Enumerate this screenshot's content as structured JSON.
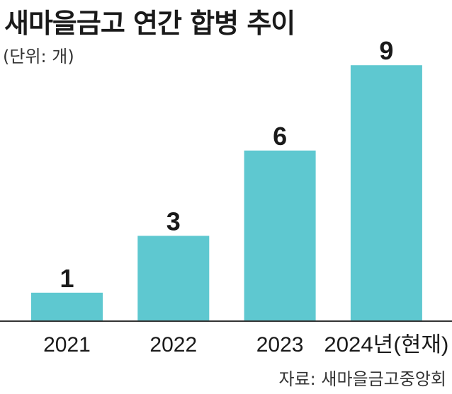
{
  "title": "새마을금고 연간 합병 추이",
  "unit_note": "(단위: 개)",
  "source": "자료: 새마을금고중앙회",
  "colors": {
    "bar": "#5ec8d0",
    "axis": "#333333",
    "text": "#1a1a1a"
  },
  "chart_data": {
    "type": "bar",
    "title": "새마을금고 연간 합병 추이",
    "categories": [
      "2021",
      "2022",
      "2023",
      "2024년(현재)"
    ],
    "values": [
      1,
      3,
      6,
      9
    ],
    "data_labels": [
      "1",
      "3",
      "6",
      "9"
    ],
    "ylim": [
      0,
      10
    ],
    "grid": false,
    "legend": "none"
  }
}
